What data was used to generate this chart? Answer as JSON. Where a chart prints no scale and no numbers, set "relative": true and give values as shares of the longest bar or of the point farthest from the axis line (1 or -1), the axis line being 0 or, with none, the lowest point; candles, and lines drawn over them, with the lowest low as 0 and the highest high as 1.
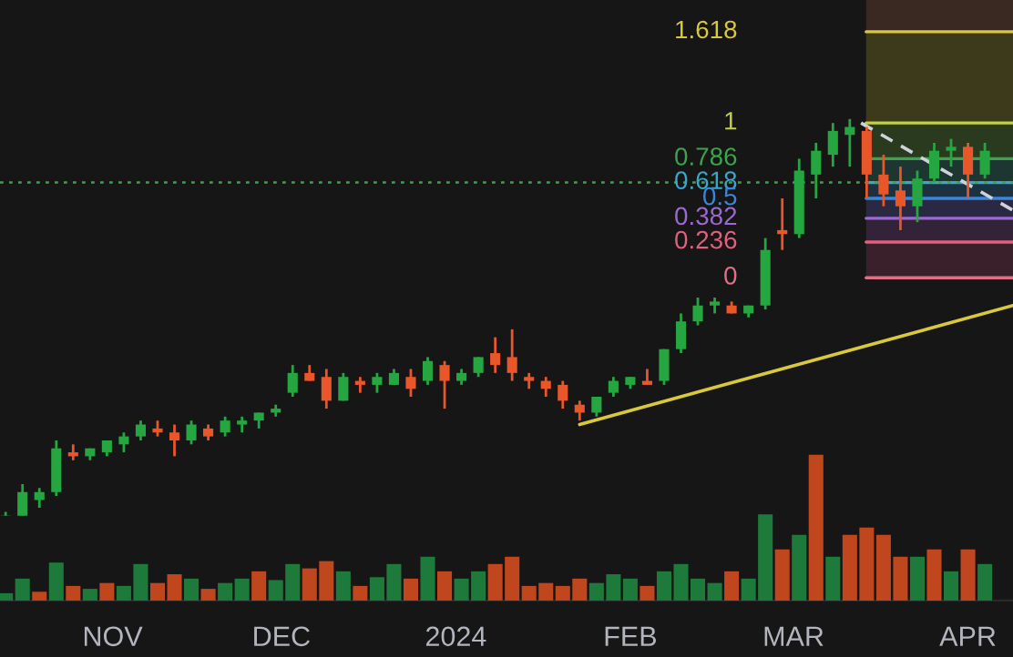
{
  "chart_data": [
    {
      "type": "candlestick",
      "relative": true,
      "xlim": [
        "2023-10-12",
        "2024-04-09"
      ],
      "annotations": [
        "1.618",
        "1",
        "0.786",
        "0.618",
        "0.5",
        "0.382",
        "0.236",
        "0"
      ],
      "x": [
        "2023-10-13",
        "2023-10-16",
        "2023-10-19",
        "2023-10-22",
        "2023-10-25",
        "2023-10-28",
        "2023-10-31",
        "2023-11-03",
        "2023-11-06",
        "2023-11-09",
        "2023-11-12",
        "2023-11-15",
        "2023-11-18",
        "2023-11-21",
        "2023-11-24",
        "2023-11-27",
        "2023-11-30",
        "2023-12-03",
        "2023-12-06",
        "2023-12-09",
        "2023-12-12",
        "2023-12-15",
        "2023-12-18",
        "2023-12-21",
        "2023-12-24",
        "2023-12-27",
        "2023-12-30",
        "2024-01-02",
        "2024-01-05",
        "2024-01-08",
        "2024-01-11",
        "2024-01-14",
        "2024-01-17",
        "2024-01-20",
        "2024-01-23",
        "2024-01-26",
        "2024-01-29",
        "2024-02-01",
        "2024-02-04",
        "2024-02-07",
        "2024-02-10",
        "2024-02-13",
        "2024-02-16",
        "2024-02-19",
        "2024-02-22",
        "2024-02-25",
        "2024-02-28",
        "2024-03-02",
        "2024-03-05",
        "2024-03-08",
        "2024-03-11",
        "2024-03-14",
        "2024-03-17",
        "2024-03-20",
        "2024-03-23",
        "2024-03-26",
        "2024-03-29",
        "2024-04-01",
        "2024-04-04"
      ],
      "ohlc": [
        [
          0.0,
          0.01,
          0.0,
          0.0
        ],
        [
          0.0,
          0.08,
          0.0,
          0.06
        ],
        [
          0.04,
          0.07,
          0.02,
          0.06
        ],
        [
          0.06,
          0.19,
          0.05,
          0.17
        ],
        [
          0.16,
          0.18,
          0.14,
          0.15
        ],
        [
          0.15,
          0.17,
          0.14,
          0.17
        ],
        [
          0.16,
          0.19,
          0.15,
          0.19
        ],
        [
          0.18,
          0.21,
          0.16,
          0.2
        ],
        [
          0.2,
          0.24,
          0.19,
          0.23
        ],
        [
          0.22,
          0.24,
          0.2,
          0.21
        ],
        [
          0.21,
          0.23,
          0.15,
          0.19
        ],
        [
          0.19,
          0.24,
          0.18,
          0.23
        ],
        [
          0.22,
          0.23,
          0.19,
          0.2
        ],
        [
          0.21,
          0.25,
          0.2,
          0.24
        ],
        [
          0.23,
          0.25,
          0.21,
          0.24
        ],
        [
          0.24,
          0.26,
          0.22,
          0.26
        ],
        [
          0.26,
          0.28,
          0.25,
          0.27
        ],
        [
          0.31,
          0.38,
          0.3,
          0.36
        ],
        [
          0.36,
          0.38,
          0.34,
          0.34
        ],
        [
          0.35,
          0.37,
          0.27,
          0.29
        ],
        [
          0.29,
          0.36,
          0.29,
          0.35
        ],
        [
          0.34,
          0.35,
          0.31,
          0.33
        ],
        [
          0.33,
          0.36,
          0.31,
          0.35
        ],
        [
          0.33,
          0.37,
          0.33,
          0.36
        ],
        [
          0.35,
          0.37,
          0.3,
          0.32
        ],
        [
          0.34,
          0.4,
          0.33,
          0.39
        ],
        [
          0.38,
          0.39,
          0.27,
          0.34
        ],
        [
          0.34,
          0.37,
          0.33,
          0.36
        ],
        [
          0.36,
          0.4,
          0.35,
          0.4
        ],
        [
          0.41,
          0.45,
          0.36,
          0.38
        ],
        [
          0.4,
          0.47,
          0.34,
          0.36
        ],
        [
          0.35,
          0.36,
          0.32,
          0.34
        ],
        [
          0.34,
          0.35,
          0.3,
          0.32
        ],
        [
          0.33,
          0.34,
          0.27,
          0.29
        ],
        [
          0.28,
          0.29,
          0.24,
          0.26
        ],
        [
          0.26,
          0.3,
          0.25,
          0.3
        ],
        [
          0.31,
          0.35,
          0.3,
          0.34
        ],
        [
          0.33,
          0.35,
          0.32,
          0.35
        ],
        [
          0.34,
          0.37,
          0.33,
          0.33
        ],
        [
          0.34,
          0.42,
          0.33,
          0.42
        ],
        [
          0.42,
          0.51,
          0.41,
          0.49
        ],
        [
          0.49,
          0.55,
          0.48,
          0.53
        ],
        [
          0.53,
          0.55,
          0.51,
          0.54
        ],
        [
          0.53,
          0.54,
          0.51,
          0.51
        ],
        [
          0.51,
          0.53,
          0.5,
          0.53
        ],
        [
          0.53,
          0.7,
          0.52,
          0.67
        ],
        [
          0.72,
          0.8,
          0.67,
          0.71
        ],
        [
          0.71,
          0.9,
          0.7,
          0.87
        ],
        [
          0.86,
          0.94,
          0.8,
          0.92
        ],
        [
          0.91,
          0.99,
          0.88,
          0.97
        ],
        [
          0.96,
          1.0,
          0.88,
          0.98
        ],
        [
          0.97,
          0.98,
          0.8,
          0.86
        ],
        [
          0.86,
          0.91,
          0.78,
          0.81
        ],
        [
          0.82,
          0.88,
          0.72,
          0.78
        ],
        [
          0.78,
          0.87,
          0.74,
          0.85
        ],
        [
          0.85,
          0.94,
          0.84,
          0.92
        ],
        [
          0.92,
          0.95,
          0.88,
          0.93
        ],
        [
          0.93,
          0.94,
          0.8,
          0.86
        ],
        [
          0.86,
          0.94,
          0.85,
          0.92
        ]
      ],
      "colors": [
        "#26a641",
        "#26a641",
        "#26a641",
        "#26a641",
        "#e8562a",
        "#26a641",
        "#26a641",
        "#26a641",
        "#26a641",
        "#e8562a",
        "#e8562a",
        "#26a641",
        "#e8562a",
        "#26a641",
        "#26a641",
        "#26a641",
        "#26a641",
        "#26a641",
        "#e8562a",
        "#e8562a",
        "#26a641",
        "#e8562a",
        "#26a641",
        "#26a641",
        "#e8562a",
        "#26a641",
        "#e8562a",
        "#26a641",
        "#26a641",
        "#e8562a",
        "#e8562a",
        "#e8562a",
        "#e8562a",
        "#e8562a",
        "#e8562a",
        "#26a641",
        "#26a641",
        "#26a641",
        "#e8562a",
        "#26a641",
        "#26a641",
        "#26a641",
        "#26a641",
        "#e8562a",
        "#26a641",
        "#26a641",
        "#e8562a",
        "#26a641",
        "#26a641",
        "#26a641",
        "#26a641",
        "#e8562a",
        "#e8562a",
        "#e8562a",
        "#26a641",
        "#26a641",
        "#26a641",
        "#e8562a",
        "#26a641"
      ],
      "series": [
        {
          "type": "line",
          "color": "#d9c83c",
          "x": [
            "2024-01-23",
            "2024-04-09"
          ],
          "values": [
            0.23,
            0.53
          ]
        },
        {
          "type": "line",
          "color": "#cfd2d8",
          "line_style": "dashed",
          "x": [
            "2024-03-13",
            "2024-04-09"
          ],
          "values": [
            0.99,
            0.77
          ]
        }
      ],
      "ref_lines": [
        {
          "axis": "y",
          "value": 1.22,
          "color": "#d9c83c"
        },
        {
          "axis": "y",
          "value": 0.99,
          "color": "#c5d046"
        },
        {
          "axis": "y",
          "value": 0.9,
          "color": "#3fa34d"
        },
        {
          "axis": "y",
          "value": 0.84,
          "color": "#3aa6c9"
        },
        {
          "axis": "y",
          "value": 0.8,
          "color": "#3c86d8"
        },
        {
          "axis": "y",
          "value": 0.75,
          "color": "#9b6ad1"
        },
        {
          "axis": "y",
          "value": 0.69,
          "color": "#e0607e"
        },
        {
          "axis": "y",
          "value": 0.6,
          "color": "#e07088"
        },
        {
          "axis": "y",
          "value": 0.84,
          "color": "#3fa34d",
          "line_style": "dotted"
        }
      ],
      "bands": [
        {
          "axis": "y",
          "from": 1.22,
          "to": 1.3,
          "color": "#5a3a30"
        },
        {
          "axis": "y",
          "from": 0.99,
          "to": 1.22,
          "color": "#5e5a20"
        },
        {
          "axis": "y",
          "from": 0.9,
          "to": 0.99,
          "color": "#3a5a28"
        },
        {
          "axis": "y",
          "from": 0.84,
          "to": 0.9,
          "color": "#245248"
        },
        {
          "axis": "y",
          "from": 0.8,
          "to": 0.84,
          "color": "#244a66"
        },
        {
          "axis": "y",
          "from": 0.75,
          "to": 0.8,
          "color": "#3a3a6a"
        },
        {
          "axis": "y",
          "from": 0.69,
          "to": 0.75,
          "color": "#4a3058"
        },
        {
          "axis": "y",
          "from": 0.6,
          "to": 0.69,
          "color": "#5a2a3c"
        }
      ]
    },
    {
      "type": "bar",
      "relative": true,
      "xlim": [
        "2023-10-12",
        "2024-04-09"
      ],
      "xticks": [
        {
          "value": "2023-11-01",
          "label": "NOV"
        },
        {
          "value": "2023-12-01",
          "label": "DEC"
        },
        {
          "value": "2024-01-01",
          "label": "2024"
        },
        {
          "value": "2024-02-01",
          "label": "FEB"
        },
        {
          "value": "2024-03-01",
          "label": "MAR"
        },
        {
          "value": "2024-04-01",
          "label": "APR"
        }
      ],
      "x": [
        "2023-10-13",
        "2023-10-16",
        "2023-10-19",
        "2023-10-22",
        "2023-10-25",
        "2023-10-28",
        "2023-10-31",
        "2023-11-03",
        "2023-11-06",
        "2023-11-09",
        "2023-11-12",
        "2023-11-15",
        "2023-11-18",
        "2023-11-21",
        "2023-11-24",
        "2023-11-27",
        "2023-11-30",
        "2023-12-03",
        "2023-12-06",
        "2023-12-09",
        "2023-12-12",
        "2023-12-15",
        "2023-12-18",
        "2023-12-21",
        "2023-12-24",
        "2023-12-27",
        "2023-12-30",
        "2024-01-02",
        "2024-01-05",
        "2024-01-08",
        "2024-01-11",
        "2024-01-14",
        "2024-01-17",
        "2024-01-20",
        "2024-01-23",
        "2024-01-26",
        "2024-01-29",
        "2024-02-01",
        "2024-02-04",
        "2024-02-07",
        "2024-02-10",
        "2024-02-13",
        "2024-02-16",
        "2024-02-19",
        "2024-02-22",
        "2024-02-25",
        "2024-02-28",
        "2024-03-02",
        "2024-03-05",
        "2024-03-08",
        "2024-03-11",
        "2024-03-14",
        "2024-03-17",
        "2024-03-20",
        "2024-03-23",
        "2024-03-26",
        "2024-03-29",
        "2024-04-01",
        "2024-04-04"
      ],
      "values": [
        0.05,
        0.15,
        0.06,
        0.26,
        0.1,
        0.08,
        0.12,
        0.1,
        0.25,
        0.12,
        0.18,
        0.15,
        0.08,
        0.12,
        0.15,
        0.2,
        0.14,
        0.25,
        0.22,
        0.27,
        0.2,
        0.1,
        0.16,
        0.25,
        0.15,
        0.3,
        0.2,
        0.15,
        0.2,
        0.25,
        0.3,
        0.1,
        0.12,
        0.1,
        0.15,
        0.12,
        0.18,
        0.15,
        0.1,
        0.2,
        0.25,
        0.15,
        0.12,
        0.2,
        0.15,
        0.59,
        0.35,
        0.45,
        1.0,
        0.3,
        0.45,
        0.5,
        0.45,
        0.3,
        0.3,
        0.35,
        0.2,
        0.35,
        0.25
      ],
      "colors": [
        "#1e7a3a",
        "#1e7a3a",
        "#c0461e",
        "#1e7a3a",
        "#c0461e",
        "#1e7a3a",
        "#c0461e",
        "#1e7a3a",
        "#1e7a3a",
        "#c0461e",
        "#c0461e",
        "#1e7a3a",
        "#c0461e",
        "#1e7a3a",
        "#1e7a3a",
        "#c0461e",
        "#1e7a3a",
        "#1e7a3a",
        "#c0461e",
        "#c0461e",
        "#1e7a3a",
        "#c0461e",
        "#1e7a3a",
        "#1e7a3a",
        "#c0461e",
        "#1e7a3a",
        "#c0461e",
        "#1e7a3a",
        "#1e7a3a",
        "#c0461e",
        "#c0461e",
        "#c0461e",
        "#c0461e",
        "#c0461e",
        "#c0461e",
        "#1e7a3a",
        "#1e7a3a",
        "#1e7a3a",
        "#c0461e",
        "#1e7a3a",
        "#1e7a3a",
        "#1e7a3a",
        "#1e7a3a",
        "#c0461e",
        "#1e7a3a",
        "#1e7a3a",
        "#c0461e",
        "#1e7a3a",
        "#c0461e",
        "#1e7a3a",
        "#c0461e",
        "#c0461e",
        "#c0461e",
        "#c0461e",
        "#1e7a3a",
        "#c0461e",
        "#1e7a3a",
        "#c0461e",
        "#1e7a3a"
      ]
    }
  ]
}
